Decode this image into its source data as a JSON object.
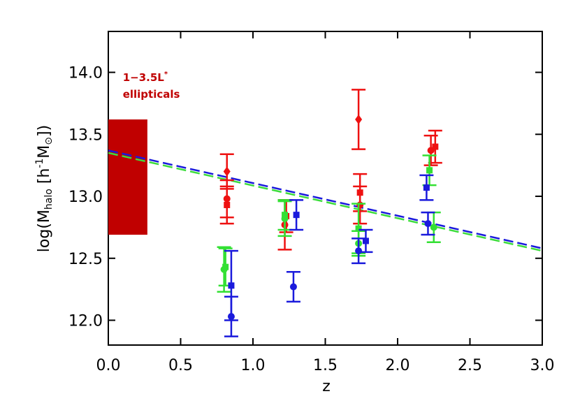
{
  "chart_data": {
    "type": "errorbar",
    "xlabel": "z",
    "ylabel_parts": [
      {
        "text": "log(M",
        "style": "normal"
      },
      {
        "text": "halo",
        "style": "sub"
      },
      {
        "text": " [h",
        "style": "normal"
      },
      {
        "text": "-1",
        "style": "sup"
      },
      {
        "text": "M",
        "style": "normal"
      },
      {
        "text": "⊙",
        "style": "sub"
      },
      {
        "text": "])",
        "style": "normal"
      }
    ],
    "annotation": {
      "parts": [
        {
          "text": "1−3.5L",
          "style": "normal"
        },
        {
          "text": "*",
          "style": "sup"
        }
      ],
      "line2": "ellipticals",
      "color": "#c00000",
      "x": 0.1,
      "y": 13.93
    },
    "xlim": [
      0,
      3.0
    ],
    "ylim": [
      11.8,
      14.33
    ],
    "xticks": [
      {
        "value": 0,
        "label": "0.0"
      },
      0.5,
      {
        "value": 1,
        "label": "1.0"
      },
      1.5,
      {
        "value": 2,
        "label": "2.0"
      },
      2.5,
      {
        "value": 3,
        "label": "3.0"
      }
    ],
    "yticks": [
      {
        "value": 12,
        "label": "12.0"
      },
      12.5,
      {
        "value": 13,
        "label": "13.0"
      },
      13.5,
      {
        "value": 14,
        "label": "14.0"
      }
    ],
    "band": {
      "x": [
        0,
        0.27
      ],
      "y": [
        12.69,
        13.62
      ],
      "color": "#c00000"
    },
    "lines": [
      {
        "color": "#1a1adc",
        "x": [
          0,
          3.0
        ],
        "y": [
          13.37,
          12.58
        ]
      },
      {
        "color": "#3ddc3d",
        "x": [
          0,
          3.0
        ],
        "y": [
          13.35,
          12.56
        ]
      }
    ],
    "series": [
      {
        "color": "#ee1111",
        "marker": "diamond",
        "x": [
          0.82,
          1.73
        ],
        "values": [
          13.2,
          13.62
        ],
        "yerr": [
          0.14,
          0.24
        ]
      },
      {
        "color": "#ee1111",
        "marker": "circle",
        "x": [
          0.82,
          1.22,
          1.74,
          2.23
        ],
        "values": [
          12.98,
          12.77,
          12.93,
          13.37
        ],
        "yerr": [
          0.15,
          0.2,
          0.15,
          0.12
        ]
      },
      {
        "color": "#ee1111",
        "marker": "square",
        "x": [
          0.82,
          1.23,
          1.74,
          2.26
        ],
        "values": [
          12.93,
          12.84,
          13.03,
          13.4
        ],
        "yerr": [
          0.15,
          0.13,
          0.15,
          0.13
        ]
      },
      {
        "color": "#33e033",
        "marker": "circle",
        "x": [
          0.8,
          1.22,
          1.73,
          2.25
        ],
        "values": [
          12.41,
          12.82,
          12.62,
          12.75
        ],
        "yerr": [
          0.18,
          0.14,
          0.1,
          0.12
        ]
      },
      {
        "color": "#33e033",
        "marker": "square",
        "x": [
          0.81,
          1.22,
          1.73,
          2.22
        ],
        "values": [
          12.43,
          12.85,
          12.74,
          13.21
        ],
        "yerr": [
          0.15,
          0.12,
          0.2,
          0.12
        ]
      },
      {
        "color": "#1a1adc",
        "marker": "circle",
        "x": [
          0.85,
          1.28,
          1.73,
          2.21
        ],
        "values": [
          12.03,
          12.27,
          12.56,
          12.78
        ],
        "yerr": [
          0.16,
          0.12,
          0.1,
          0.09
        ]
      },
      {
        "color": "#1a1adc",
        "marker": "square",
        "x": [
          0.85,
          1.3,
          1.78,
          2.2
        ],
        "values": [
          12.28,
          12.85,
          12.64,
          13.07
        ],
        "yerr": [
          0.28,
          0.12,
          0.09,
          0.1
        ]
      }
    ]
  }
}
